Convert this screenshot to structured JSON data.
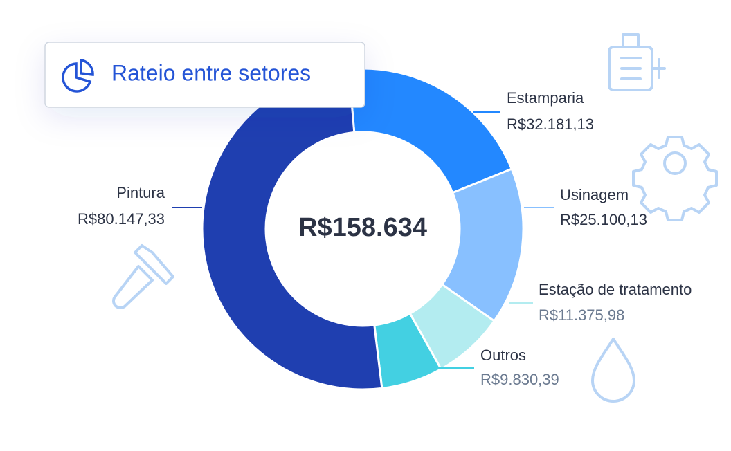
{
  "chart_data": {
    "type": "donut",
    "title": "Rateio entre setores",
    "center_label": "R$158.634",
    "categories": [
      "Estamparia",
      "Usinagem",
      "Estação de tratamento",
      "Outros",
      "Pintura"
    ],
    "values": [
      32181.13,
      25100.13,
      11375.98,
      9830.39,
      80147.33
    ],
    "value_labels": [
      "R$32.181,13",
      "R$25.100,13",
      "R$11.375,98",
      "R$9.830,39",
      "R$80.147,33"
    ],
    "colors": [
      "#2388ff",
      "#88c0ff",
      "#b3ecf0",
      "#43d0e2",
      "#1f3fb0"
    ]
  }
}
